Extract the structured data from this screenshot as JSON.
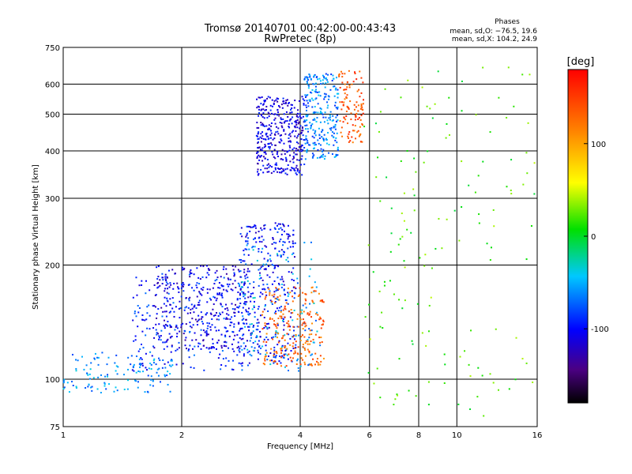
{
  "chart_data": {
    "type": "scatter",
    "title": "Tromsø 20140701 00:42:00-00:43:43",
    "subtitle": "RwPretec (8p)",
    "xlabel": "Frequency [MHz]",
    "ylabel": "Stationary phase Virtual Height [km]",
    "x_scale": "log",
    "y_scale": "log",
    "xlim": [
      1,
      16
    ],
    "ylim": [
      75,
      750
    ],
    "x_ticks": [
      1,
      2,
      4,
      6,
      8,
      10,
      16
    ],
    "x_tick_labels": [
      "1",
      "2",
      "4",
      "6",
      "8",
      "10",
      "16"
    ],
    "y_ticks": [
      75,
      100,
      200,
      300,
      400,
      500,
      600,
      750
    ],
    "y_tick_labels": [
      "75",
      "100",
      "200",
      "300",
      "400",
      "500",
      "600",
      "750"
    ],
    "grid": true,
    "phase_box": {
      "heading": "Phases",
      "line_o": "mean, sd,O: −76.5, 19.6",
      "line_x": "mean, sd,X: 104.2, 24.9"
    },
    "colorbar": {
      "label": "[deg]",
      "range": [
        -180,
        180
      ],
      "ticks": [
        100,
        0,
        -100
      ],
      "tick_labels": [
        "100",
        "0",
        "-100"
      ],
      "colormap": "rainbow"
    },
    "clusters": [
      {
        "name": "",
        "x": [
          1.0,
          1.9
        ],
        "y": [
          92,
          118
        ],
        "phase": -60,
        "count": 130
      },
      {
        "name": "",
        "x": [
          1.5,
          3.0
        ],
        "y": [
          105,
          190
        ],
        "phase": -90,
        "count": 260
      },
      {
        "name": "",
        "x": [
          1.7,
          3.0
        ],
        "y": [
          120,
          200
        ],
        "phase": -110,
        "count": 300
      },
      {
        "name": "",
        "x": [
          2.8,
          3.9
        ],
        "y": [
          110,
          260
        ],
        "phase": -100,
        "count": 320
      },
      {
        "name": "",
        "x": [
          2.8,
          4.5
        ],
        "y": [
          105,
          230
        ],
        "phase": -55,
        "count": 140
      },
      {
        "name": "",
        "x": [
          3.2,
          4.6
        ],
        "y": [
          108,
          175
        ],
        "phase": 130,
        "count": 220
      },
      {
        "name": "",
        "x": [
          3.1,
          4.1
        ],
        "y": [
          345,
          560
        ],
        "phase": -110,
        "count": 380
      },
      {
        "name": "",
        "x": [
          4.1,
          5.0
        ],
        "y": [
          380,
          640
        ],
        "phase": -65,
        "count": 260
      },
      {
        "name": "",
        "x": [
          5.0,
          5.8
        ],
        "y": [
          420,
          660
        ],
        "phase": 140,
        "count": 110
      },
      {
        "name": "",
        "x": [
          5.8,
          16.0
        ],
        "y": [
          80,
          680
        ],
        "phase": 20,
        "count": 150
      }
    ]
  }
}
